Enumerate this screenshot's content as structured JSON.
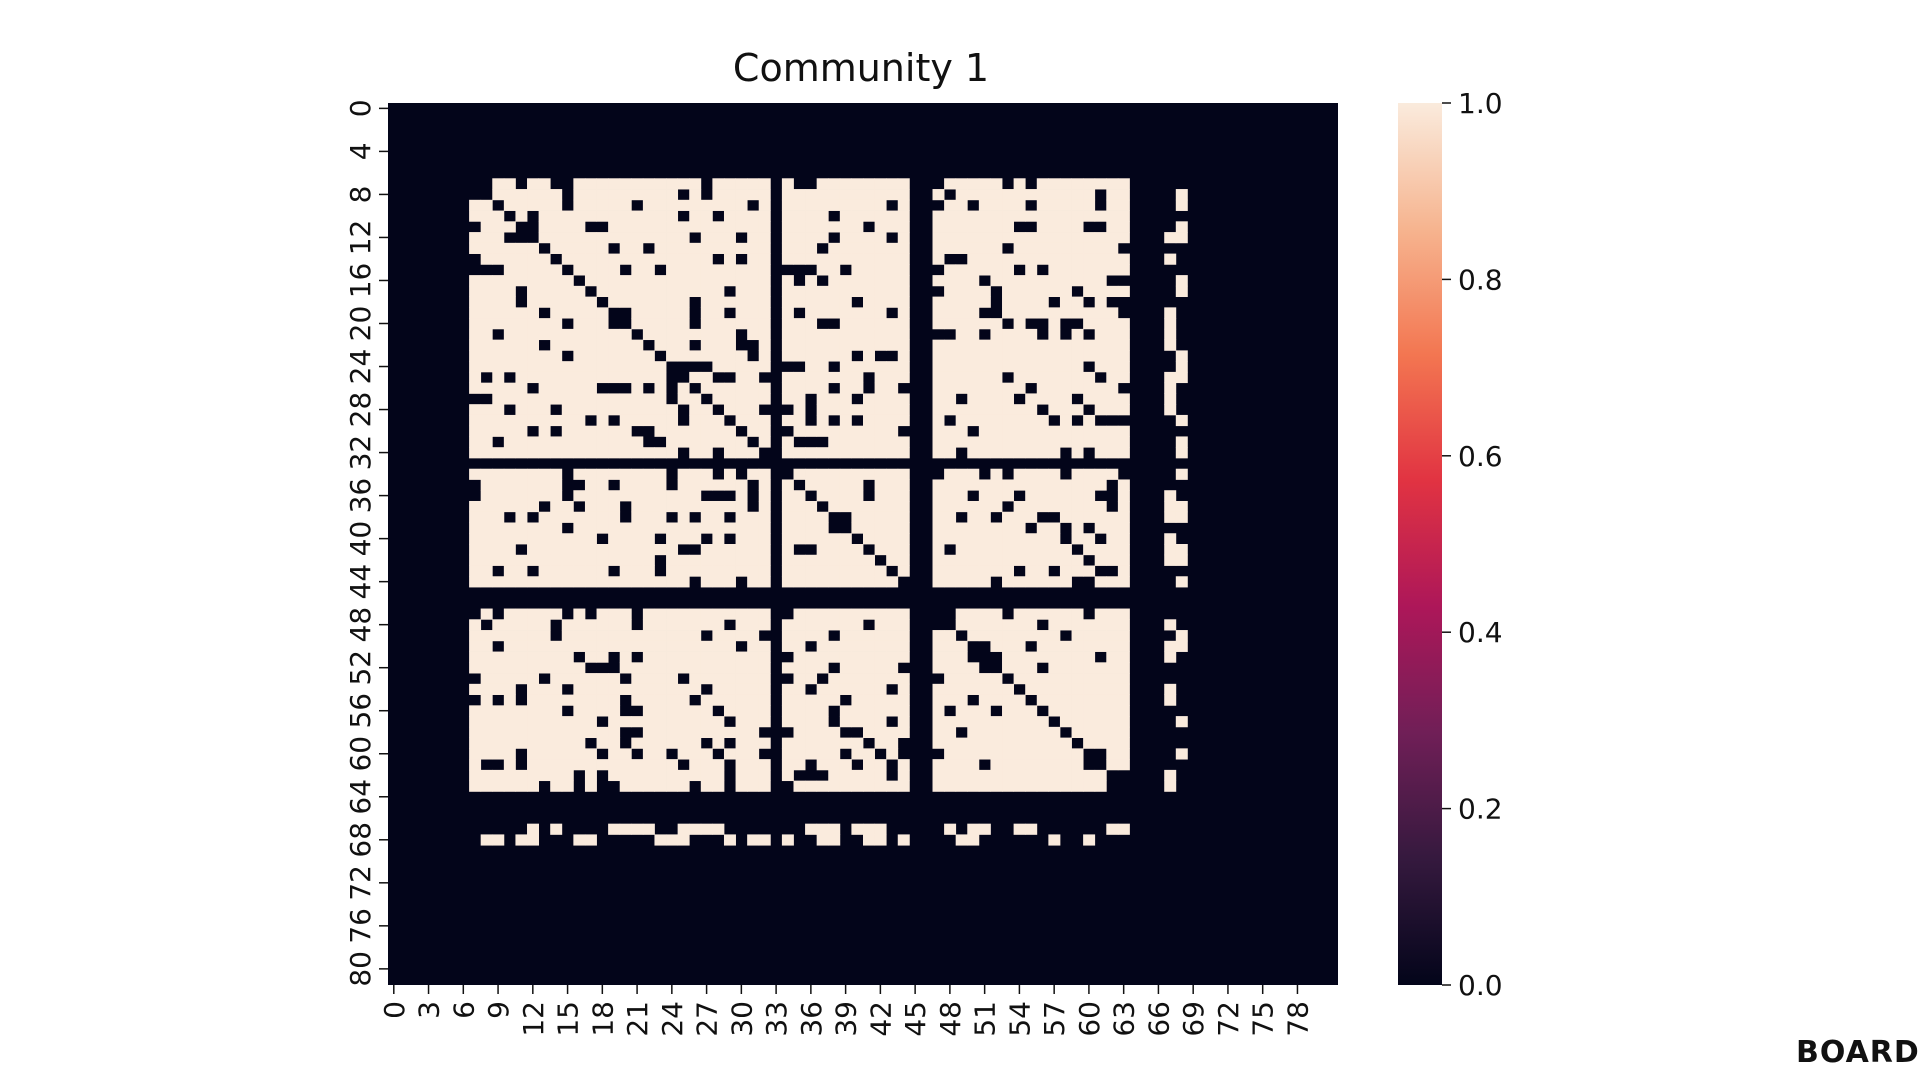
{
  "chart_data": {
    "type": "heatmap",
    "title": "Community 1",
    "n": 82,
    "x_tick_labels": [
      "0",
      "3",
      "6",
      "9",
      "12",
      "15",
      "18",
      "21",
      "24",
      "27",
      "30",
      "33",
      "36",
      "39",
      "42",
      "45",
      "48",
      "51",
      "54",
      "57",
      "60",
      "63",
      "66",
      "69",
      "72",
      "75",
      "78"
    ],
    "y_tick_labels": [
      "0",
      "4",
      "8",
      "12",
      "16",
      "20",
      "24",
      "28",
      "32",
      "36",
      "40",
      "44",
      "48",
      "52",
      "56",
      "60",
      "64",
      "68",
      "72",
      "76",
      "80"
    ],
    "colorbar": {
      "min": 0.0,
      "max": 1.0,
      "tick_labels": [
        "0.0",
        "0.2",
        "0.4",
        "0.6",
        "0.8",
        "1.0"
      ],
      "colormap": "rocket",
      "colors": [
        "#03051a",
        "#35193e",
        "#701f57",
        "#ad1759",
        "#e13342",
        "#f37651",
        "#f6b48f",
        "#faebdd"
      ]
    },
    "block_structure": {
      "description_of_values": "binary adjacency matrix (0 or 1)",
      "groups": [
        [
          7,
          32
        ],
        [
          34,
          44
        ],
        [
          47,
          63
        ],
        [
          67,
          68
        ]
      ],
      "mostly_empty_indices": [
        0,
        1,
        2,
        3,
        4,
        5,
        6,
        33,
        45,
        46,
        64,
        65,
        66,
        69,
        70,
        71,
        72,
        73,
        74,
        75,
        76,
        77,
        78,
        79,
        80,
        81
      ],
      "diagonal_value": 0
    }
  },
  "brand": {
    "logo_text": "BOARD"
  }
}
